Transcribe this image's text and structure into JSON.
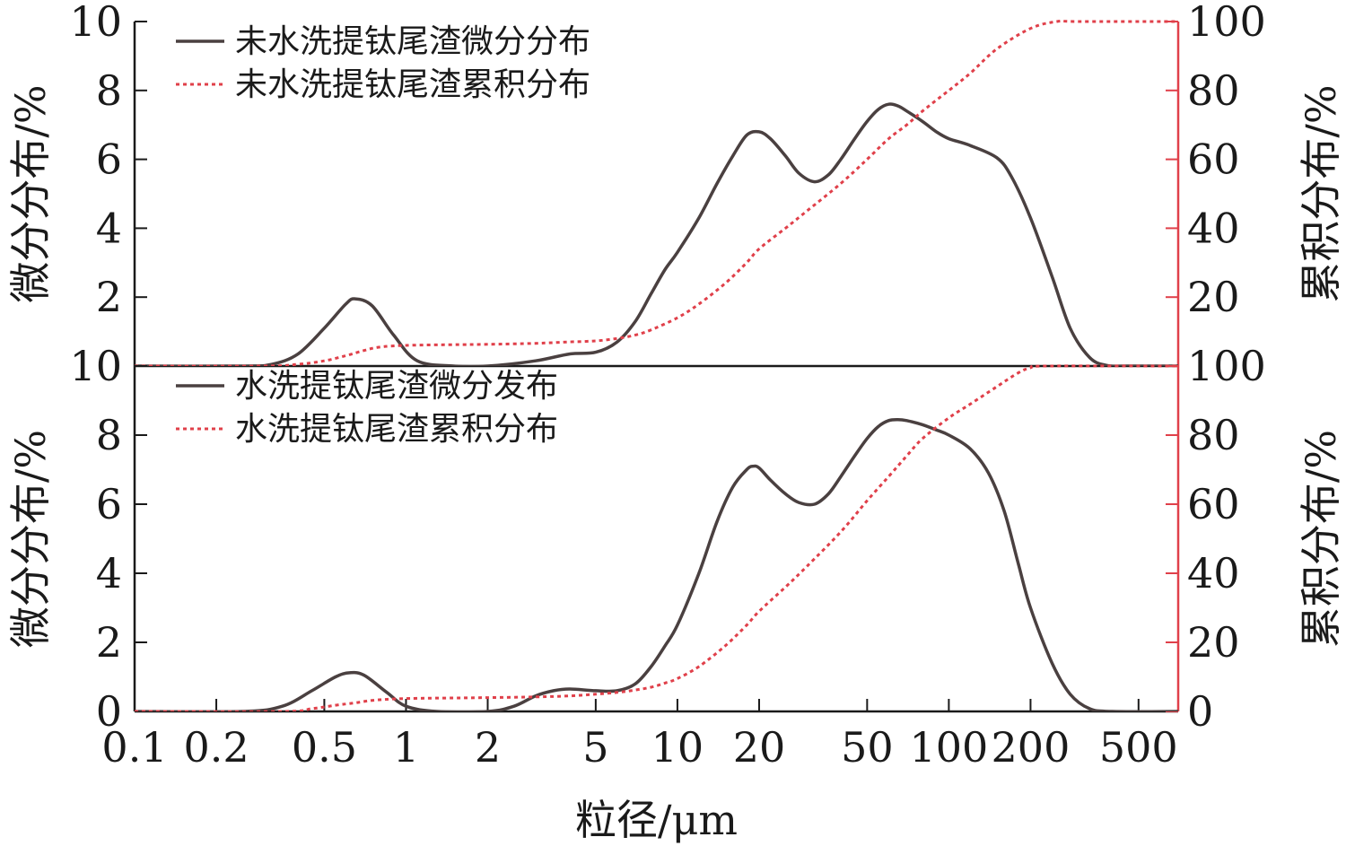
{
  "chart_data": [
    {
      "type": "line",
      "panel": "top",
      "x_scale": "log",
      "xlim": [
        0.1,
        700
      ],
      "ylim": [
        0,
        10
      ],
      "y2lim": [
        0,
        100
      ],
      "ylabel": "微分分布/%",
      "y2label": "累积分布/%",
      "yticks": [
        "10",
        "8",
        "6",
        "4",
        "2"
      ],
      "y2ticks": [
        "100",
        "80",
        "60",
        "40",
        "20"
      ],
      "legend_position": "top-left",
      "series": [
        {
          "name": "未水洗提钛尾渣微分分布",
          "axis": "left",
          "style": "solid",
          "color": "#4a4040",
          "x": [
            0.1,
            0.25,
            0.32,
            0.4,
            0.5,
            0.6,
            0.65,
            0.75,
            0.9,
            1.1,
            1.5,
            2,
            3,
            4,
            5,
            6,
            7,
            8,
            9,
            10,
            12,
            14,
            16,
            18,
            20,
            22,
            25,
            28,
            32,
            36,
            40,
            45,
            50,
            55,
            60,
            65,
            70,
            80,
            90,
            100,
            120,
            150,
            170,
            200,
            240,
            280,
            330,
            380,
            450,
            700
          ],
          "y": [
            0,
            0,
            0.05,
            0.35,
            1.1,
            1.8,
            1.95,
            1.75,
            0.9,
            0.15,
            0,
            0,
            0.15,
            0.35,
            0.4,
            0.7,
            1.3,
            2.1,
            2.8,
            3.3,
            4.3,
            5.3,
            6.1,
            6.7,
            6.8,
            6.6,
            6.1,
            5.6,
            5.35,
            5.55,
            6.0,
            6.6,
            7.1,
            7.45,
            7.6,
            7.55,
            7.4,
            7.1,
            6.8,
            6.6,
            6.4,
            6.05,
            5.5,
            4.3,
            2.6,
            1.1,
            0.25,
            0.02,
            0,
            0
          ]
        },
        {
          "name": "未水洗提钛尾渣累积分布",
          "axis": "right",
          "style": "dotted",
          "color": "#e0404a",
          "x": [
            0.1,
            0.3,
            0.4,
            0.5,
            0.6,
            0.7,
            0.8,
            1.0,
            1.5,
            2,
            3,
            4,
            5,
            6,
            7,
            8,
            10,
            12,
            15,
            18,
            20,
            25,
            30,
            40,
            50,
            60,
            70,
            80,
            100,
            120,
            150,
            200,
            250,
            300,
            700
          ],
          "y": [
            0,
            0,
            0.5,
            1.5,
            3,
            4.5,
            5.5,
            6,
            6.2,
            6.3,
            6.6,
            7,
            7.3,
            8,
            9,
            10.5,
            14,
            18,
            24,
            30,
            34,
            40,
            45,
            53,
            60,
            66,
            70,
            74,
            80,
            85,
            92,
            98,
            100,
            100,
            100
          ]
        }
      ]
    },
    {
      "type": "line",
      "panel": "bottom",
      "x_scale": "log",
      "xlim": [
        0.1,
        700
      ],
      "ylim": [
        0,
        10
      ],
      "y2lim": [
        0,
        100
      ],
      "xlabel": "粒径/μm",
      "xticks": [
        0.1,
        0.2,
        0.5,
        1,
        2,
        5,
        10,
        20,
        50,
        100,
        200,
        500
      ],
      "xtick_labels": [
        "0.1",
        "0.2",
        "0.5",
        "1",
        "2",
        "5",
        "10",
        "20",
        "50",
        "100",
        "200",
        "500"
      ],
      "ylabel": "微分分布/%",
      "y2label": "累积分布/%",
      "yticks": [
        "10",
        "8",
        "6",
        "4",
        "2",
        "0"
      ],
      "y2ticks": [
        "100",
        "80",
        "60",
        "40",
        "20",
        "0"
      ],
      "legend_position": "top-left",
      "series": [
        {
          "name": "水洗提钛尾渣微分发布",
          "axis": "left",
          "style": "solid",
          "color": "#4a4040",
          "x": [
            0.1,
            0.25,
            0.35,
            0.45,
            0.55,
            0.62,
            0.7,
            0.85,
            1.0,
            1.3,
            2,
            2.5,
            3,
            3.5,
            4,
            5,
            6,
            7,
            8,
            9,
            10,
            12,
            14,
            16,
            18,
            19,
            20,
            22,
            25,
            28,
            32,
            36,
            40,
            45,
            50,
            55,
            60,
            65,
            70,
            80,
            90,
            100,
            120,
            140,
            160,
            180,
            200,
            240,
            280,
            330,
            400,
            700
          ],
          "y": [
            0,
            0,
            0.15,
            0.6,
            1.0,
            1.12,
            1.05,
            0.55,
            0.15,
            0,
            0,
            0.15,
            0.45,
            0.6,
            0.65,
            0.6,
            0.6,
            0.8,
            1.3,
            1.9,
            2.5,
            4.0,
            5.5,
            6.5,
            7.0,
            7.1,
            7.05,
            6.7,
            6.3,
            6.05,
            6.0,
            6.3,
            6.8,
            7.4,
            7.9,
            8.25,
            8.42,
            8.45,
            8.42,
            8.3,
            8.15,
            8.0,
            7.6,
            6.9,
            5.8,
            4.3,
            3.0,
            1.4,
            0.5,
            0.08,
            0,
            0
          ]
        },
        {
          "name": "水洗提钛尾渣累积分布",
          "axis": "right",
          "style": "dotted",
          "color": "#e0404a",
          "x": [
            0.1,
            0.35,
            0.45,
            0.55,
            0.65,
            0.75,
            0.9,
            1.1,
            1.5,
            2,
            3,
            4,
            5,
            6,
            7,
            8,
            9,
            10,
            12,
            15,
            18,
            20,
            25,
            30,
            40,
            50,
            60,
            70,
            80,
            100,
            120,
            150,
            180,
            200,
            230,
            700
          ],
          "y": [
            0,
            0,
            0.8,
            1.8,
            2.5,
            3.2,
            3.6,
            3.8,
            3.9,
            4.0,
            4.2,
            4.5,
            5.0,
            5.5,
            6.2,
            7.0,
            8.2,
            9.5,
            13,
            19,
            25,
            29,
            36,
            42,
            52,
            61,
            68,
            74,
            79,
            85,
            89,
            94,
            98,
            99.5,
            100,
            100
          ]
        }
      ]
    }
  ]
}
